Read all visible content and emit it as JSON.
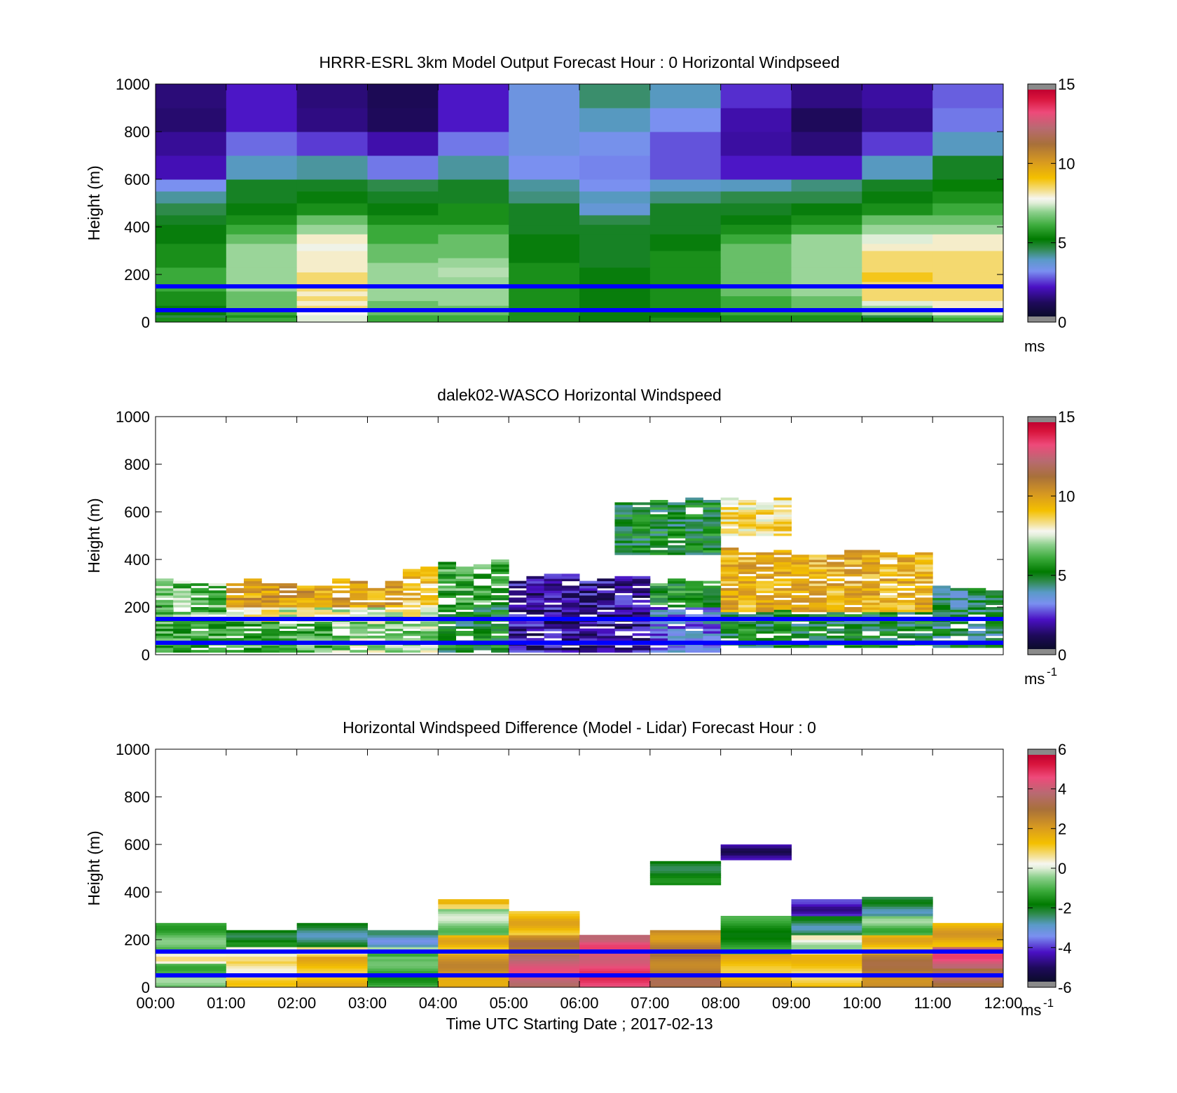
{
  "figure": {
    "xlabel": "Time UTC  Starting Date ; 2017-02-13",
    "xticks": [
      "00:00",
      "01:00",
      "02:00",
      "03:00",
      "04:00",
      "05:00",
      "06:00",
      "07:00",
      "08:00",
      "09:00",
      "10:00",
      "11:00",
      "12:00"
    ],
    "yticks": [
      "0",
      "200",
      "400",
      "600",
      "800",
      "1000"
    ],
    "ylabel": "Height (m)",
    "reference_lines_m": [
      50,
      150
    ],
    "reference_line_color": "#0000ff"
  },
  "panels": [
    {
      "title": "HRRR-ESRL 3km Model Output   Forecast Hour : 0 Horizontal Windpseed",
      "colorbar": {
        "ticks": [
          "0",
          "5",
          "10",
          "15"
        ],
        "unit": "ms",
        "unit_sup": ""
      }
    },
    {
      "title": "dalek02-WASCO  Horizontal Windspeed",
      "colorbar": {
        "ticks": [
          "0",
          "5",
          "10",
          "15"
        ],
        "unit": "ms",
        "unit_sup": "-1"
      }
    },
    {
      "title": "Horizontal Windspeed Difference (Model - Lidar) Forecast Hour : 0",
      "colorbar": {
        "ticks": [
          "-6",
          "-4",
          "-2",
          "0",
          "2",
          "4",
          "6"
        ],
        "unit": "ms",
        "unit_sup": "-1"
      }
    }
  ],
  "chart_data": [
    {
      "type": "heatmap",
      "title": "HRRR-ESRL 3km Model Output   Forecast Hour : 0 Horizontal Windpseed",
      "xlabel": "",
      "ylabel": "Height (m)",
      "xlim": [
        0,
        12
      ],
      "ylim": [
        0,
        1000
      ],
      "clim": [
        0,
        15
      ],
      "colorbar_unit": "ms",
      "x_hours": [
        0,
        1,
        2,
        3,
        4,
        5,
        6,
        7,
        8,
        9,
        10,
        11
      ],
      "y_bounds": [
        0,
        20,
        30,
        50,
        70,
        90,
        110,
        130,
        150,
        170,
        190,
        210,
        230,
        250,
        270,
        300,
        330,
        370,
        410,
        450,
        500,
        550,
        600,
        700,
        800,
        900,
        1000
      ],
      "values_ms": [
        [
          5.5,
          6.0,
          7.5,
          6.0,
          6.0,
          5.5,
          5.0,
          5.5,
          5.5,
          5.5,
          5.0,
          6.0
        ],
        [
          4.5,
          5.5,
          7.5,
          6.0,
          6.0,
          5.5,
          5.0,
          5.0,
          5.5,
          5.5,
          4.5,
          6.5
        ],
        [
          5.0,
          6.0,
          7.8,
          6.5,
          6.5,
          5.5,
          5.0,
          5.0,
          6.0,
          6.0,
          7.0,
          7.5
        ],
        [
          5.0,
          6.5,
          8.5,
          6.5,
          6.5,
          5.5,
          5.0,
          5.5,
          6.0,
          6.5,
          7.0,
          8.0
        ],
        [
          5.5,
          6.5,
          8.0,
          6.5,
          7.0,
          5.5,
          5.0,
          5.5,
          6.0,
          6.5,
          7.5,
          8.0
        ],
        [
          5.5,
          6.5,
          8.5,
          7.0,
          7.0,
          5.5,
          5.0,
          5.5,
          6.0,
          6.5,
          8.5,
          8.5
        ],
        [
          5.5,
          6.5,
          8.0,
          7.0,
          7.0,
          5.5,
          5.0,
          5.5,
          6.5,
          7.0,
          8.5,
          8.5
        ],
        [
          6.0,
          7.0,
          8.5,
          7.0,
          7.0,
          5.5,
          5.0,
          5.5,
          6.5,
          7.0,
          8.5,
          8.5
        ],
        [
          6.0,
          7.0,
          8.5,
          7.0,
          7.0,
          5.5,
          5.0,
          5.5,
          6.5,
          7.0,
          8.5,
          8.5
        ],
        [
          6.0,
          7.0,
          8.5,
          7.0,
          7.0,
          5.5,
          5.0,
          5.5,
          6.5,
          7.0,
          9.0,
          8.5
        ],
        [
          6.0,
          7.0,
          8.5,
          7.0,
          7.2,
          5.5,
          5.0,
          5.5,
          6.5,
          7.0,
          9.0,
          8.5
        ],
        [
          6.0,
          7.0,
          8.0,
          7.0,
          7.2,
          5.5,
          5.0,
          5.5,
          6.5,
          7.0,
          8.5,
          8.5
        ],
        [
          5.5,
          7.0,
          8.0,
          7.0,
          7.0,
          5.5,
          4.8,
          5.5,
          6.5,
          7.0,
          8.5,
          8.5
        ],
        [
          5.5,
          7.0,
          8.0,
          6.5,
          7.0,
          5.0,
          4.8,
          5.5,
          6.5,
          7.0,
          8.5,
          8.5
        ],
        [
          5.5,
          7.0,
          8.0,
          6.5,
          6.5,
          5.0,
          4.8,
          5.5,
          6.5,
          7.0,
          8.5,
          8.5
        ],
        [
          5.5,
          7.0,
          7.7,
          6.5,
          6.5,
          5.0,
          4.8,
          5.0,
          6.5,
          7.0,
          8.0,
          8.0
        ],
        [
          5.0,
          6.5,
          8.0,
          6.0,
          6.5,
          5.0,
          4.8,
          5.0,
          6.0,
          7.0,
          7.5,
          8.0
        ],
        [
          5.0,
          6.0,
          7.0,
          6.0,
          6.0,
          4.8,
          4.8,
          4.8,
          5.5,
          6.0,
          7.0,
          7.0
        ],
        [
          4.8,
          5.5,
          6.5,
          5.5,
          5.5,
          4.8,
          4.5,
          4.8,
          5.0,
          5.5,
          6.5,
          6.5
        ],
        [
          4.5,
          5.0,
          5.5,
          5.0,
          5.5,
          4.8,
          3.5,
          4.8,
          4.8,
          5.0,
          5.5,
          6.0
        ],
        [
          4.0,
          4.8,
          5.0,
          4.8,
          4.8,
          4.2,
          3.8,
          4.2,
          4.5,
          4.5,
          5.0,
          5.5
        ],
        [
          3.0,
          4.8,
          4.8,
          4.5,
          4.8,
          4.0,
          3.0,
          3.7,
          3.8,
          4.2,
          4.8,
          5.2
        ],
        [
          1.8,
          3.8,
          4.0,
          2.8,
          4.0,
          3.0,
          2.9,
          2.5,
          2.0,
          2.0,
          3.8,
          4.8
        ],
        [
          1.5,
          2.7,
          2.3,
          1.7,
          2.8,
          3.3,
          3.1,
          2.5,
          1.6,
          1.2,
          2.3,
          3.8
        ],
        [
          1.1,
          2.0,
          1.3,
          0.9,
          2.0,
          3.3,
          3.8,
          3.0,
          1.7,
          0.9,
          1.4,
          2.8
        ],
        [
          1.2,
          2.0,
          1.2,
          0.8,
          2.0,
          3.3,
          4.3,
          3.8,
          2.2,
          1.3,
          1.6,
          2.6
        ]
      ]
    },
    {
      "type": "heatmap",
      "title": "dalek02-WASCO  Horizontal Windspeed",
      "xlabel": "",
      "ylabel": "Height (m)",
      "xlim": [
        0,
        12
      ],
      "ylim": [
        0,
        1000
      ],
      "clim": [
        0,
        15
      ],
      "colorbar_unit": "ms-1",
      "time_resolution_h": 0.25,
      "height_resolution_m": 10,
      "note": "sparse lidar retrievals; missing data shown blank",
      "regions": [
        {
          "x": [
            0,
            2.5
          ],
          "y": [
            10,
            140
          ],
          "v": 6.0
        },
        {
          "x": [
            0,
            1.0
          ],
          "y": [
            140,
            300
          ],
          "v": 6.5
        },
        {
          "x": [
            1.0,
            4.0
          ],
          "y": [
            140,
            200
          ],
          "v": 7.8
        },
        {
          "x": [
            1.0,
            3.5
          ],
          "y": [
            200,
            300
          ],
          "v": 10.0
        },
        {
          "x": [
            2.5,
            4.0
          ],
          "y": [
            10,
            140
          ],
          "v": 7.0
        },
        {
          "x": [
            3.5,
            4.0
          ],
          "y": [
            200,
            360
          ],
          "v": 9.0
        },
        {
          "x": [
            4.0,
            5.0
          ],
          "y": [
            10,
            200
          ],
          "v": 5.0
        },
        {
          "x": [
            4.0,
            5.0
          ],
          "y": [
            200,
            380
          ],
          "v": 6.0
        },
        {
          "x": [
            5.0,
            7.0
          ],
          "y": [
            10,
            320
          ],
          "v": 1.5
        },
        {
          "x": [
            7.0,
            8.0
          ],
          "y": [
            10,
            200
          ],
          "v": 3.0
        },
        {
          "x": [
            7.0,
            8.0
          ],
          "y": [
            200,
            300
          ],
          "v": 5.5
        },
        {
          "x": [
            8.0,
            11.0
          ],
          "y": [
            30,
            180
          ],
          "v": 5.0
        },
        {
          "x": [
            8.0,
            11.0
          ],
          "y": [
            180,
            430
          ],
          "v": 9.5
        },
        {
          "x": [
            11.0,
            12.0
          ],
          "y": [
            30,
            280
          ],
          "v": 4.5
        },
        {
          "x": [
            6.5,
            8.0
          ],
          "y": [
            420,
            650
          ],
          "v": 5.0
        },
        {
          "x": [
            8.0,
            9.0
          ],
          "y": [
            500,
            650
          ],
          "v": 8.5
        }
      ]
    },
    {
      "type": "heatmap",
      "title": "Horizontal Windspeed Difference (Model - Lidar) Forecast Hour : 0",
      "xlabel": "Time UTC  Starting Date ; 2017-02-13",
      "ylabel": "Height (m)",
      "xlim": [
        0,
        12
      ],
      "ylim": [
        0,
        1000
      ],
      "clim": [
        -6,
        6
      ],
      "colorbar_unit": "ms-1",
      "columns": [
        {
          "x": [
            0,
            1
          ],
          "top": 270,
          "layers": [
            [
              0,
              100,
              -0.8
            ],
            [
              100,
              160,
              0.3
            ],
            [
              160,
              270,
              -1.0
            ]
          ]
        },
        {
          "x": [
            1,
            2
          ],
          "top": 240,
          "layers": [
            [
              0,
              110,
              0.8
            ],
            [
              110,
              170,
              0.3
            ],
            [
              170,
              240,
              -2.0
            ]
          ]
        },
        {
          "x": [
            2,
            3
          ],
          "top": 270,
          "layers": [
            [
              0,
              130,
              1.5
            ],
            [
              130,
              170,
              0.5
            ],
            [
              170,
              270,
              -2.5
            ]
          ]
        },
        {
          "x": [
            3,
            4
          ],
          "top": 240,
          "layers": [
            [
              0,
              120,
              -1.2
            ],
            [
              120,
              170,
              -0.8
            ],
            [
              170,
              240,
              -3.0
            ]
          ]
        },
        {
          "x": [
            4,
            5
          ],
          "top": 370,
          "layers": [
            [
              0,
              140,
              2.2
            ],
            [
              140,
              220,
              1.5
            ],
            [
              220,
              330,
              -0.5
            ],
            [
              330,
              370,
              1.2
            ]
          ]
        },
        {
          "x": [
            5,
            6
          ],
          "top": 320,
          "layers": [
            [
              0,
              140,
              4.2
            ],
            [
              140,
              220,
              2.8
            ],
            [
              220,
              320,
              1.5
            ]
          ]
        },
        {
          "x": [
            6,
            7
          ],
          "top": 220,
          "layers": [
            [
              0,
              140,
              4.8
            ],
            [
              140,
              220,
              4.5
            ]
          ]
        },
        {
          "x": [
            7,
            8
          ],
          "top": 240,
          "layers": [
            [
              0,
              140,
              3.0
            ],
            [
              140,
              240,
              2.5
            ]
          ]
        },
        {
          "x": [
            7,
            8
          ],
          "top": 530,
          "bottom": 430,
          "layers": [
            [
              430,
              530,
              -2.0
            ]
          ]
        },
        {
          "x": [
            8,
            9
          ],
          "top": 300,
          "layers": [
            [
              0,
              140,
              1.5
            ],
            [
              140,
              300,
              -1.5
            ]
          ]
        },
        {
          "x": [
            8,
            9
          ],
          "top": 600,
          "bottom": 535,
          "layers": [
            [
              535,
              600,
              -5.0
            ]
          ]
        },
        {
          "x": [
            9,
            10
          ],
          "top": 370,
          "layers": [
            [
              0,
              140,
              1.2
            ],
            [
              140,
              220,
              0.0
            ],
            [
              220,
              300,
              -2.5
            ],
            [
              300,
              370,
              -4.5
            ]
          ]
        },
        {
          "x": [
            10,
            11
          ],
          "top": 380,
          "layers": [
            [
              0,
              140,
              2.8
            ],
            [
              140,
              220,
              1.5
            ],
            [
              220,
              300,
              -0.8
            ],
            [
              300,
              380,
              -2.5
            ]
          ]
        },
        {
          "x": [
            11,
            12
          ],
          "top": 270,
          "layers": [
            [
              0,
              80,
              3.5
            ],
            [
              80,
              170,
              4.5
            ],
            [
              170,
              270,
              1.8
            ]
          ]
        }
      ]
    }
  ]
}
